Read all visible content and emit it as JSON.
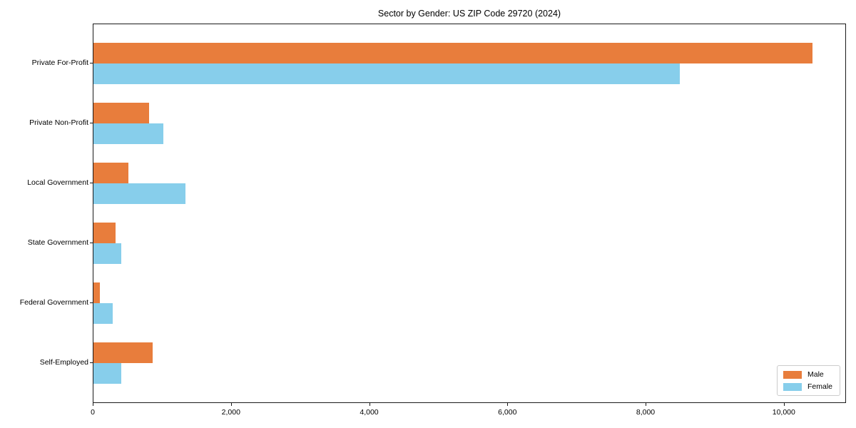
{
  "figure": {
    "background": "#ffffff"
  },
  "chart_data": {
    "type": "bar",
    "orientation": "horizontal",
    "title": "Sector by Gender: US ZIP Code 29720 (2024)",
    "categories": [
      "Private For-Profit",
      "Private Non-Profit",
      "Local Government",
      "State Government",
      "Federal Government",
      "Self-Employed"
    ],
    "series": [
      {
        "name": "Male",
        "color": "#e87d3c",
        "values": [
          10400,
          800,
          505,
          320,
          90,
          860
        ]
      },
      {
        "name": "Female",
        "color": "#87ceeb",
        "values": [
          8480,
          1010,
          1330,
          400,
          280,
          400
        ]
      }
    ],
    "xlabel": "",
    "ylabel": "",
    "xlim": [
      0,
      10900
    ],
    "xticks": [
      0,
      2000,
      4000,
      6000,
      8000,
      10000
    ],
    "xtick_labels": [
      "0",
      "2,000",
      "4,000",
      "6,000",
      "8,000",
      "10,000"
    ],
    "grid": false,
    "legend": {
      "position": "lower right",
      "entries": [
        "Male",
        "Female"
      ]
    }
  }
}
